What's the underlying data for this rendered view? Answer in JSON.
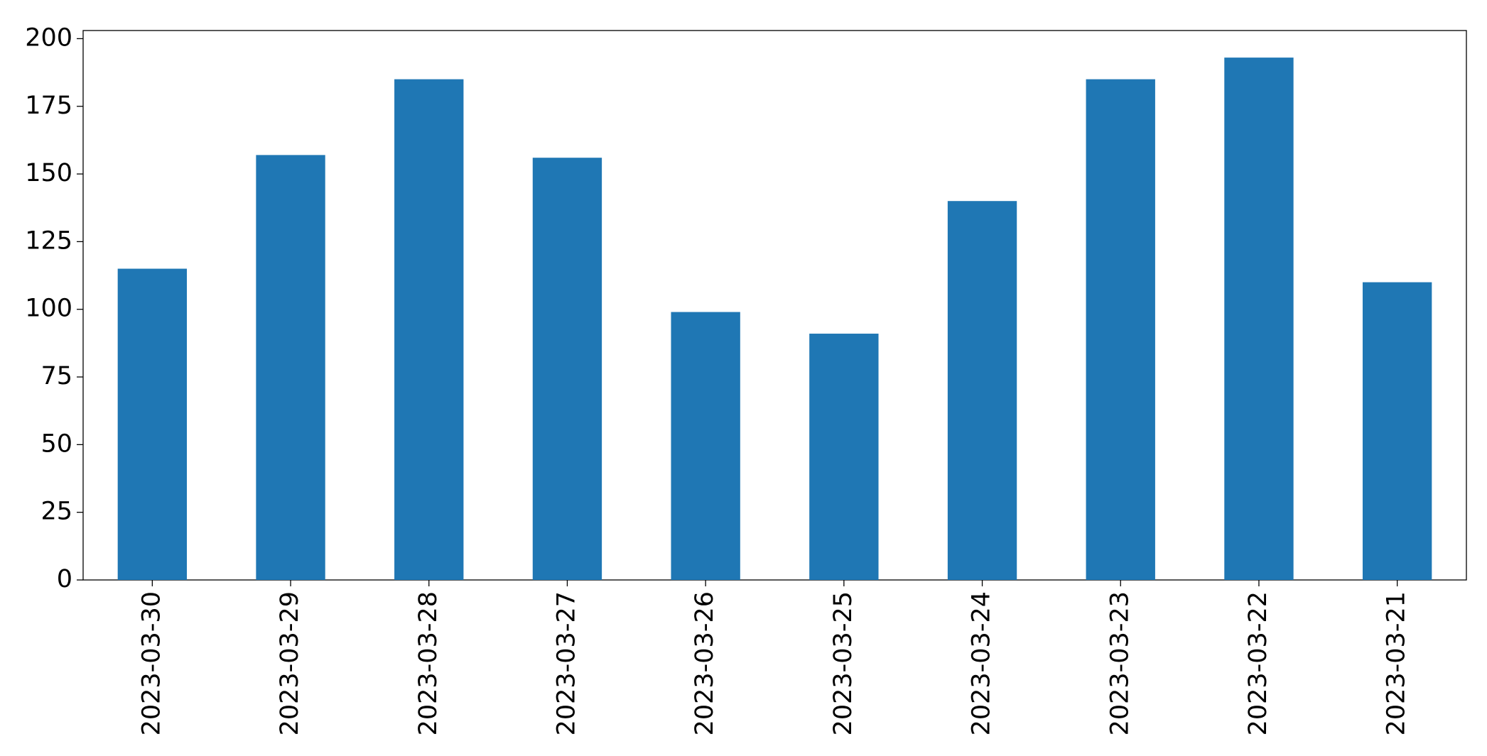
{
  "chart_data": {
    "type": "bar",
    "categories": [
      "2023-03-30",
      "2023-03-29",
      "2023-03-28",
      "2023-03-27",
      "2023-03-26",
      "2023-03-25",
      "2023-03-24",
      "2023-03-23",
      "2023-03-22",
      "2023-03-21"
    ],
    "values": [
      115,
      157,
      185,
      156,
      99,
      91,
      140,
      185,
      193,
      110
    ],
    "color": "#1f77b4",
    "ylim": [
      0,
      203
    ],
    "yticks": [
      0,
      25,
      50,
      75,
      100,
      125,
      150,
      175,
      200
    ],
    "grid": false
  }
}
